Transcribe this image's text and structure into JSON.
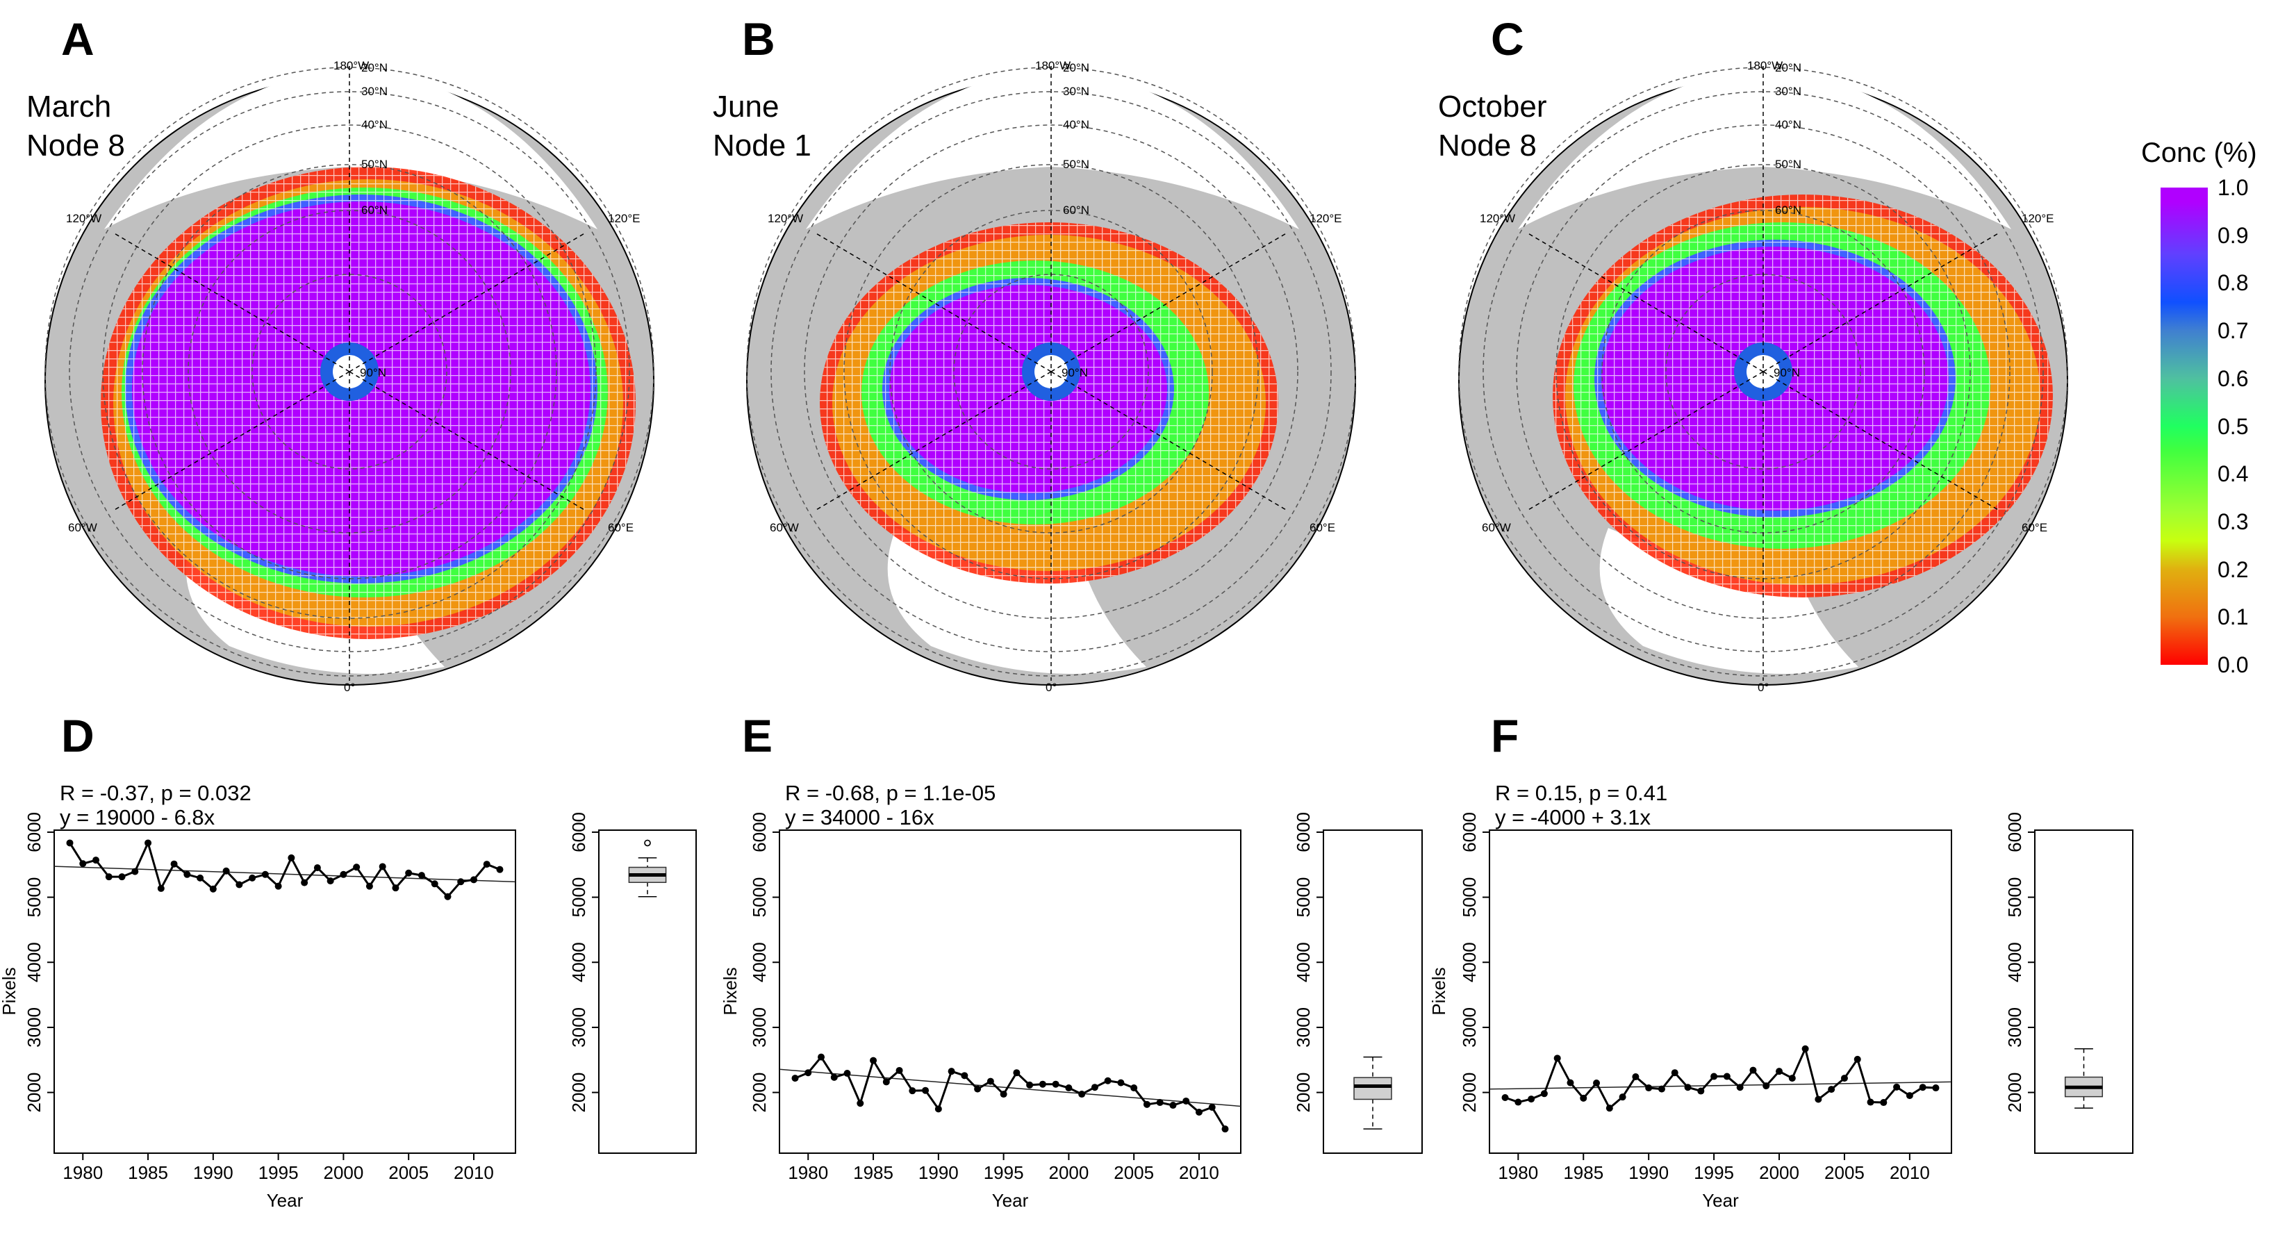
{
  "top_panels": [
    {
      "letter": "A",
      "month": "March",
      "node": "Node 8"
    },
    {
      "letter": "B",
      "month": "June",
      "node": "Node 1"
    },
    {
      "letter": "C",
      "month": "October",
      "node": "Node 8"
    }
  ],
  "map_labels": {
    "lon_180": "180°W",
    "lat_20": "20°N",
    "lat_30": "30°N",
    "lat_40": "40°N",
    "lat_50": "50°N",
    "lat_60": "60°N",
    "lat_90": "90°N",
    "lon_120w": "120°W",
    "lon_120e": "120°E",
    "lon_60w": "60°W",
    "lon_60e": "60°E",
    "lon_0": "0°"
  },
  "colorbar": {
    "title": "Conc (%)",
    "ticks": [
      "1.0",
      "0.9",
      "0.8",
      "0.7",
      "0.6",
      "0.5",
      "0.4",
      "0.3",
      "0.2",
      "0.1",
      "0.0"
    ],
    "colors": [
      "#ff0000",
      "#f07010",
      "#e0b010",
      "#c8ff10",
      "#a0ff30",
      "#40ff40",
      "#20ff60",
      "#4fc0a0",
      "#4080d0",
      "#1050ff",
      "#6040ff",
      "#b000ff"
    ]
  },
  "map_colors": {
    "land": "#c0c0c0",
    "ice_high": "#b000ff",
    "ice_mid": "#40ff40",
    "ice_low": "#ff2000",
    "pole": "#2060e0"
  },
  "chart_data": [
    {
      "type": "line",
      "letter": "D",
      "annotation_r": "R = -0.37, p = 0.032",
      "annotation_eq": "y = 19000 - 6.8x",
      "xlabel": "Year",
      "ylabel": "Pixels",
      "xlim": [
        1977.8,
        2013.2
      ],
      "ylim": [
        1067,
        6031
      ],
      "xticks": [
        "1980",
        "1985",
        "1990",
        "1995",
        "2000",
        "2005",
        "2010"
      ],
      "yticks": [
        "2000",
        "3000",
        "4000",
        "5000",
        "6000"
      ],
      "x": [
        1979,
        1980,
        1981,
        1982,
        1983,
        1984,
        1985,
        1986,
        1987,
        1988,
        1989,
        1990,
        1991,
        1992,
        1993,
        1994,
        1995,
        1996,
        1997,
        1998,
        1999,
        2000,
        2001,
        2002,
        2003,
        2004,
        2005,
        2006,
        2007,
        2008,
        2009,
        2010,
        2011,
        2012
      ],
      "values": [
        5834,
        5516,
        5570,
        5314,
        5314,
        5395,
        5834,
        5135,
        5511,
        5350,
        5296,
        5126,
        5404,
        5193,
        5296,
        5350,
        5170,
        5605,
        5224,
        5453,
        5251,
        5350,
        5462,
        5170,
        5471,
        5143,
        5372,
        5336,
        5206,
        5009,
        5238,
        5269,
        5507,
        5426
      ],
      "boxplot": true
    },
    {
      "type": "line",
      "letter": "E",
      "annotation_r": "R = -0.68, p = 1.1e-05",
      "annotation_eq": "y = 34000 - 16x",
      "xlabel": "Year",
      "ylabel": "Pixels",
      "xlim": [
        1977.8,
        2013.2
      ],
      "ylim": [
        1067,
        6031
      ],
      "xticks": [
        "1980",
        "1985",
        "1990",
        "1995",
        "2000",
        "2005",
        "2010"
      ],
      "yticks": [
        "2000",
        "3000",
        "4000",
        "5000",
        "6000"
      ],
      "x": [
        1979,
        1980,
        1981,
        1982,
        1983,
        1984,
        1985,
        1986,
        1987,
        1988,
        1989,
        1990,
        1991,
        1992,
        1993,
        1994,
        1995,
        1996,
        1997,
        1998,
        1999,
        2000,
        2001,
        2002,
        2003,
        2004,
        2005,
        2006,
        2007,
        2008,
        2009,
        2010,
        2011,
        2012
      ],
      "values": [
        2219,
        2303,
        2544,
        2232,
        2294,
        1833,
        2491,
        2162,
        2338,
        2026,
        2031,
        1746,
        2325,
        2259,
        2053,
        2171,
        1974,
        2303,
        2114,
        2127,
        2127,
        2070,
        1974,
        2079,
        2180,
        2149,
        2070,
        1816,
        1846,
        1803,
        1868,
        1697,
        1772,
        1439
      ],
      "boxplot": true
    },
    {
      "type": "line",
      "letter": "F",
      "annotation_r": "R = 0.15, p = 0.41",
      "annotation_eq": "y = -4000 + 3.1x",
      "xlabel": "Year",
      "ylabel": "Pixels",
      "xlim": [
        1977.8,
        2013.2
      ],
      "ylim": [
        1067,
        6031
      ],
      "xticks": [
        "1980",
        "1985",
        "1990",
        "1995",
        "2000",
        "2005",
        "2010"
      ],
      "yticks": [
        "2000",
        "3000",
        "4000",
        "5000",
        "6000"
      ],
      "x": [
        1979,
        1980,
        1981,
        1982,
        1983,
        1984,
        1985,
        1986,
        1987,
        1988,
        1989,
        1990,
        1991,
        1992,
        1993,
        1994,
        1995,
        1996,
        1997,
        1998,
        1999,
        2000,
        2001,
        2002,
        2003,
        2004,
        2005,
        2006,
        2007,
        2008,
        2009,
        2010,
        2011,
        2012
      ],
      "values": [
        1921,
        1851,
        1899,
        1982,
        2526,
        2149,
        1912,
        2145,
        1759,
        1930,
        2241,
        2070,
        2053,
        2303,
        2079,
        2022,
        2246,
        2246,
        2079,
        2342,
        2101,
        2325,
        2219,
        2671,
        1895,
        2048,
        2219,
        2509,
        1851,
        1846,
        2083,
        1952,
        2079,
        2070
      ],
      "boxplot": true
    }
  ]
}
